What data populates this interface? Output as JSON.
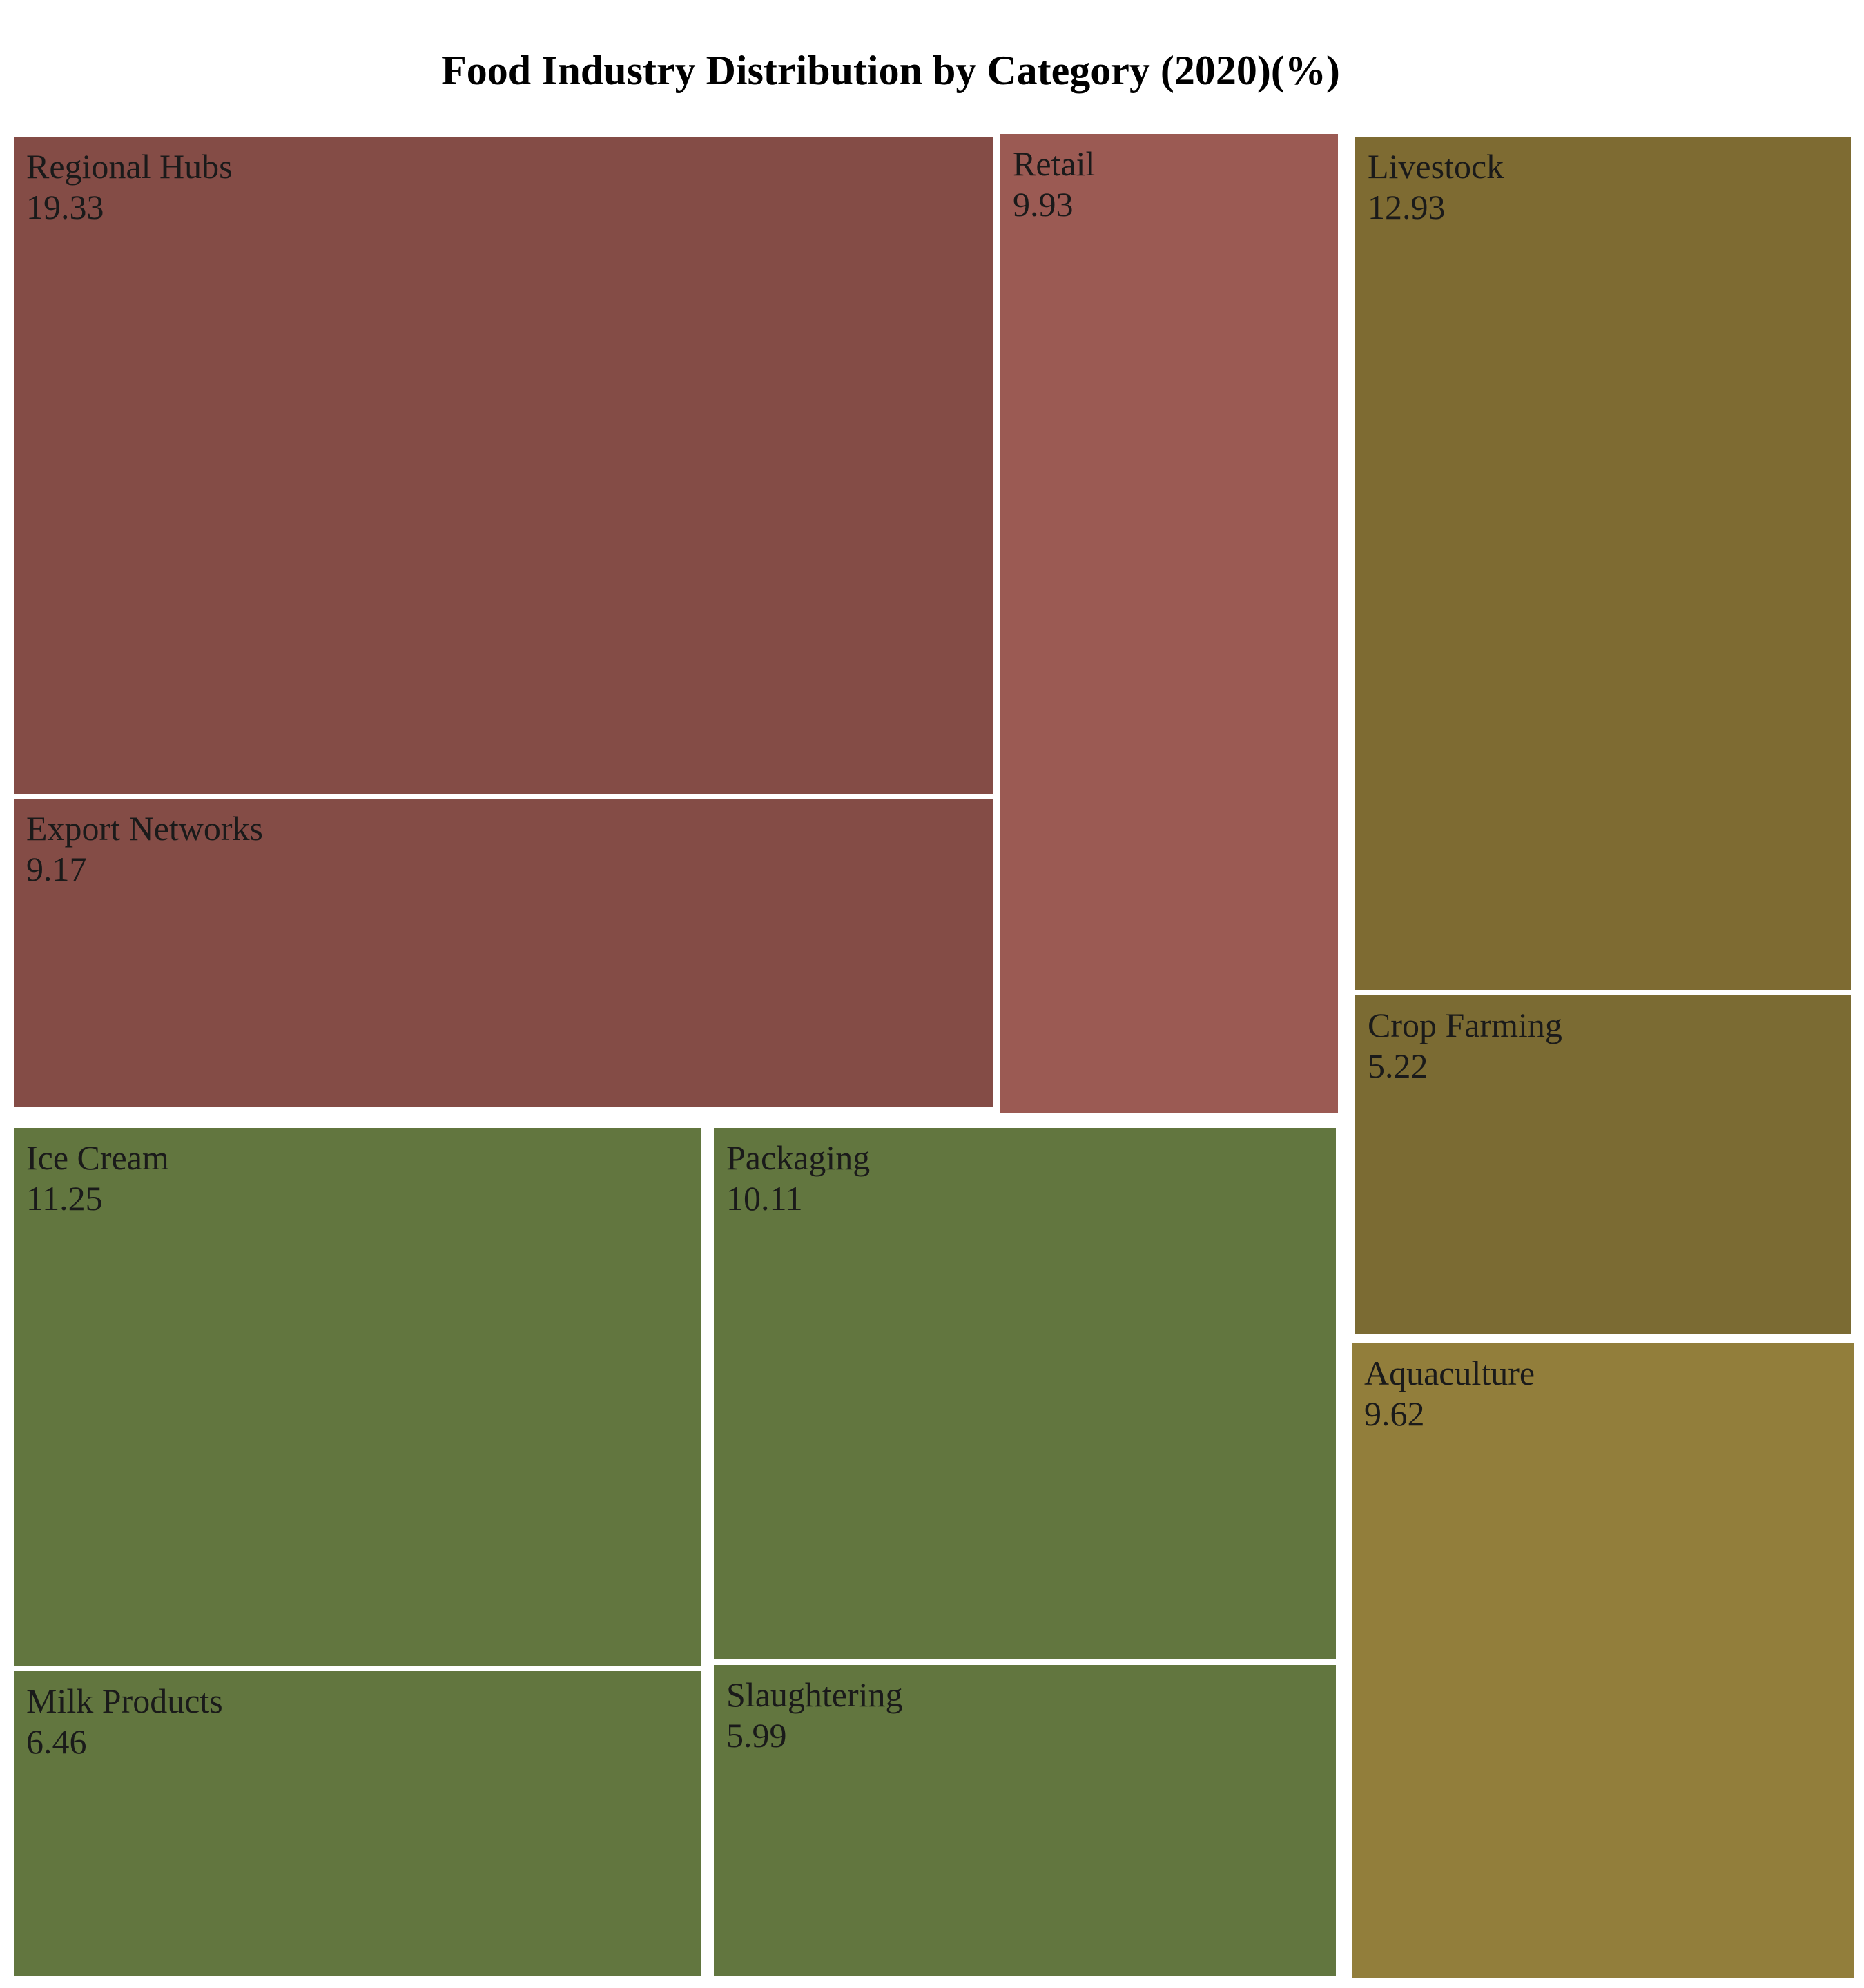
{
  "chart_data": {
    "type": "treemap",
    "title": "Food Industry Distribution by Category (2020)(%)",
    "tiles": [
      {
        "label": "Regional Hubs",
        "value": 19.33,
        "value_text": "19.33",
        "color": "#844c46"
      },
      {
        "label": "Export Networks",
        "value": 9.17,
        "value_text": "9.17",
        "color": "#844c46"
      },
      {
        "label": "Retail",
        "value": 9.93,
        "value_text": "9.93",
        "color": "#9b5a53"
      },
      {
        "label": "Livestock",
        "value": 12.93,
        "value_text": "12.93",
        "color": "#7e6b32"
      },
      {
        "label": "Crop Farming",
        "value": 5.22,
        "value_text": "5.22",
        "color": "#7b6b33"
      },
      {
        "label": "Aquaculture",
        "value": 9.62,
        "value_text": "9.62",
        "color": "#927e3b"
      },
      {
        "label": "Ice Cream",
        "value": 11.25,
        "value_text": "11.25",
        "color": "#62763f"
      },
      {
        "label": "Packaging",
        "value": 10.11,
        "value_text": "10.11",
        "color": "#62763f"
      },
      {
        "label": "Milk Products",
        "value": 6.46,
        "value_text": "6.46",
        "color": "#62763f"
      },
      {
        "label": "Slaughtering",
        "value": 5.99,
        "value_text": "5.99",
        "color": "#62763f"
      }
    ]
  }
}
